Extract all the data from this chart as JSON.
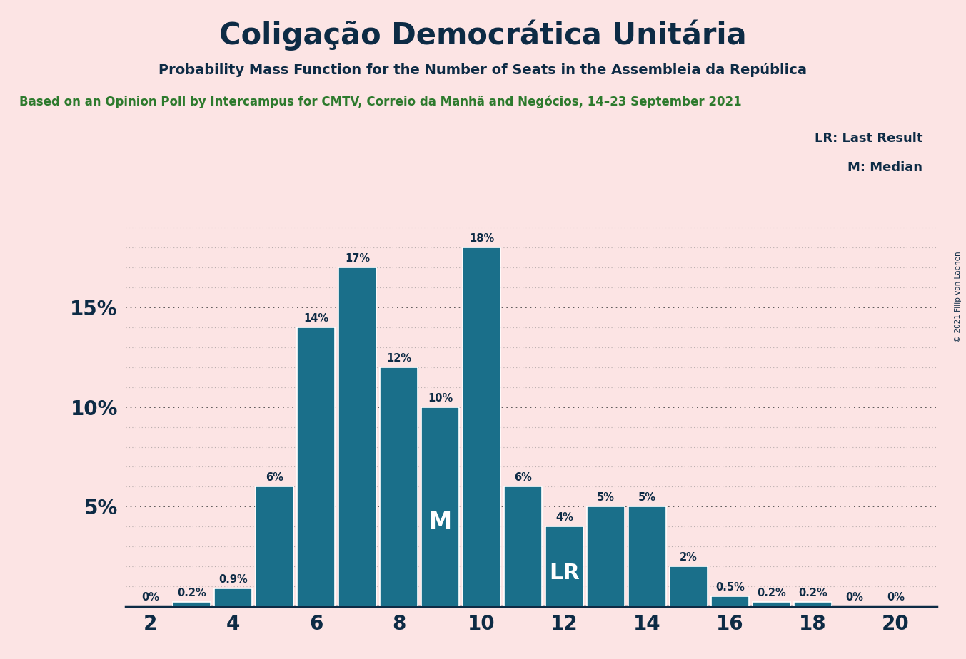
{
  "title": "Coligação Democrática Unitária",
  "subtitle": "Probability Mass Function for the Number of Seats in the Assembleia da República",
  "source_line": "Based on an Opinion Poll by Intercampus for CMTV, Correio da Manhã and Negócios, 14–23 September 2021",
  "copyright": "© 2021 Filip van Laenen",
  "categories": [
    2,
    3,
    4,
    5,
    6,
    7,
    8,
    9,
    10,
    11,
    12,
    13,
    14,
    15,
    16,
    17,
    18,
    19,
    20
  ],
  "values": [
    0.0,
    0.2,
    0.9,
    6.0,
    14.0,
    17.0,
    12.0,
    10.0,
    18.0,
    6.0,
    4.0,
    5.0,
    5.0,
    2.0,
    0.5,
    0.2,
    0.2,
    0.0,
    0.0
  ],
  "bar_color": "#1a6f8a",
  "background_color": "#fce4e4",
  "title_color": "#0d2b45",
  "source_color": "#2d7a2d",
  "median_seat": 9,
  "last_result_seat": 12,
  "xtick_positions": [
    2,
    4,
    6,
    8,
    10,
    12,
    14,
    16,
    18,
    20
  ],
  "ytick_positions": [
    5,
    10,
    15
  ],
  "ytick_labels": [
    "5%",
    "10%",
    "15%"
  ]
}
